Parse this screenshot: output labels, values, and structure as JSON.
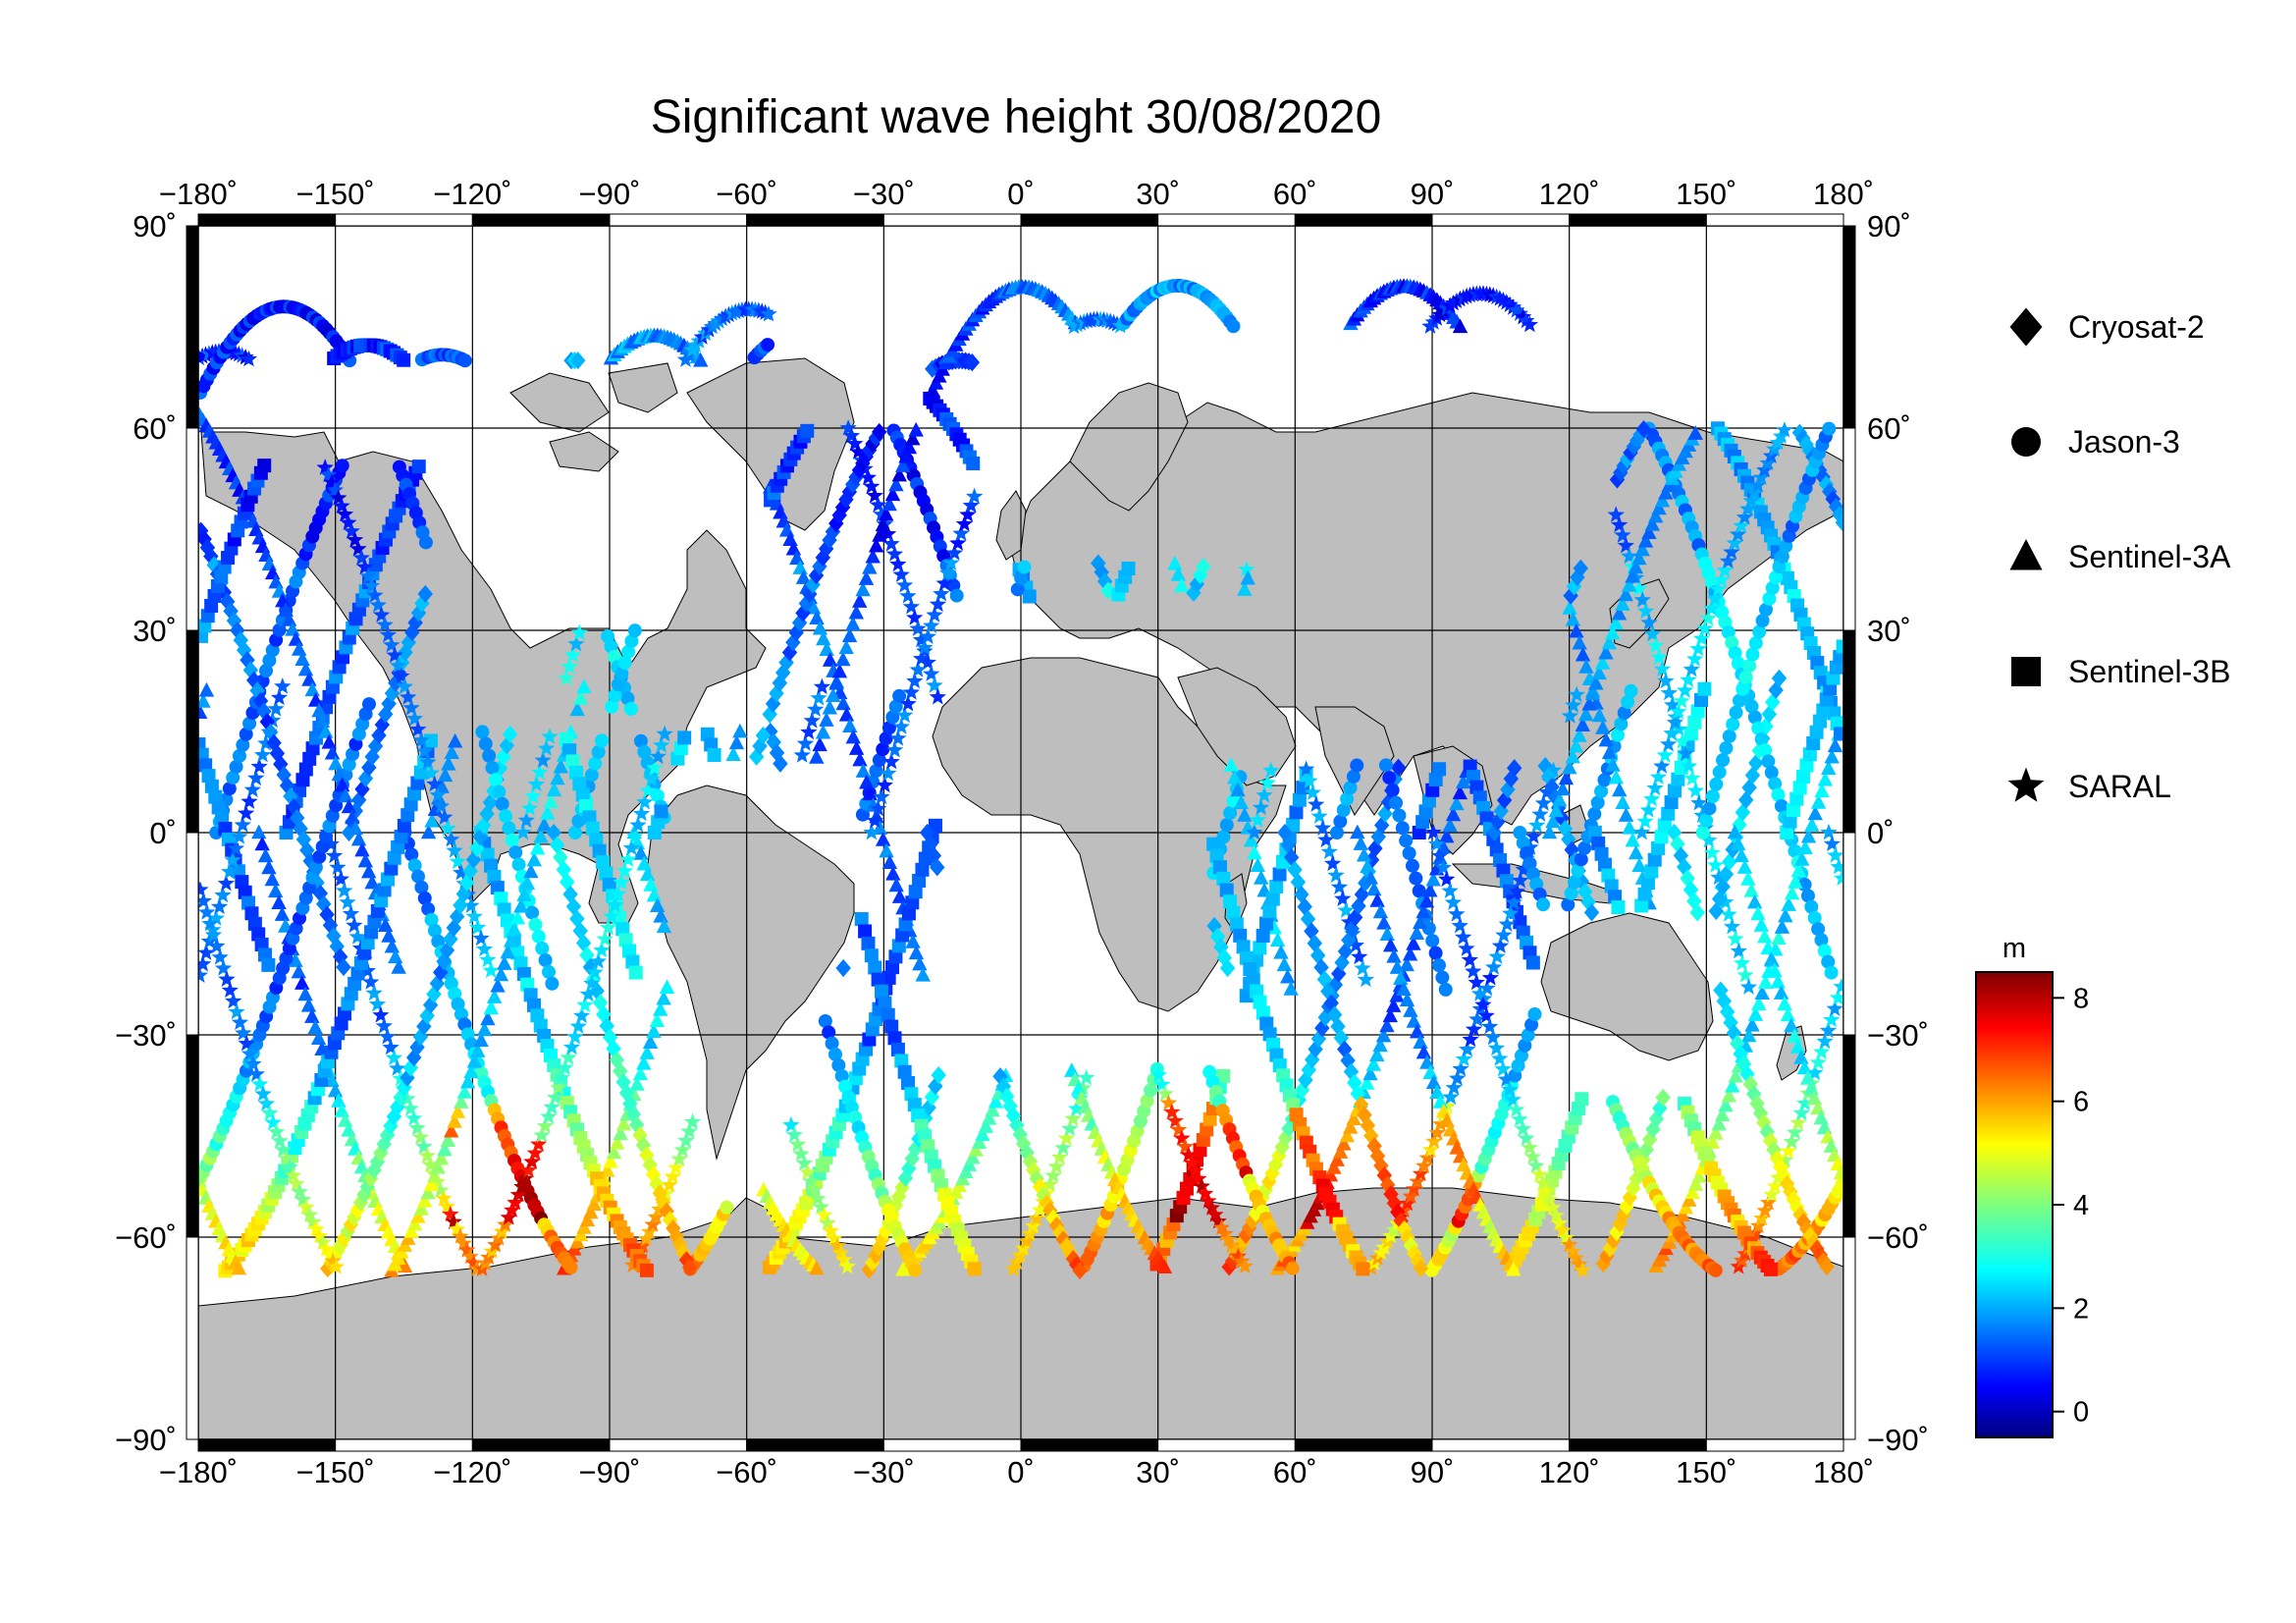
{
  "title": "Significant wave height 30/08/2020",
  "chart_data": {
    "type": "scatter",
    "projection": "equirectangular",
    "lon_range": [
      -180,
      180
    ],
    "lat_range": [
      -90,
      90
    ],
    "grid": true,
    "lon_ticks": [
      "−180˚",
      "−150˚",
      "−120˚",
      "−90˚",
      "−60˚",
      "−30˚",
      "0˚",
      "30˚",
      "60˚",
      "90˚",
      "120˚",
      "150˚",
      "180˚"
    ],
    "lat_ticks": [
      "90˚",
      "60˚",
      "30˚",
      "0˚",
      "−30˚",
      "−60˚",
      "−90˚"
    ],
    "legend_position": "right",
    "series": [
      {
        "name": "Cryosat-2",
        "marker": "diamond"
      },
      {
        "name": "Jason-3",
        "marker": "circle"
      },
      {
        "name": "Sentinel-3A",
        "marker": "triangle"
      },
      {
        "name": "Sentinel-3B",
        "marker": "square"
      },
      {
        "name": "SARAL",
        "marker": "star"
      }
    ],
    "colorbar": {
      "unit": "m",
      "range": [
        -0.5,
        8.5
      ],
      "ticks": [
        "0",
        "2",
        "4",
        "6",
        "8"
      ],
      "colormap": "jet"
    }
  }
}
